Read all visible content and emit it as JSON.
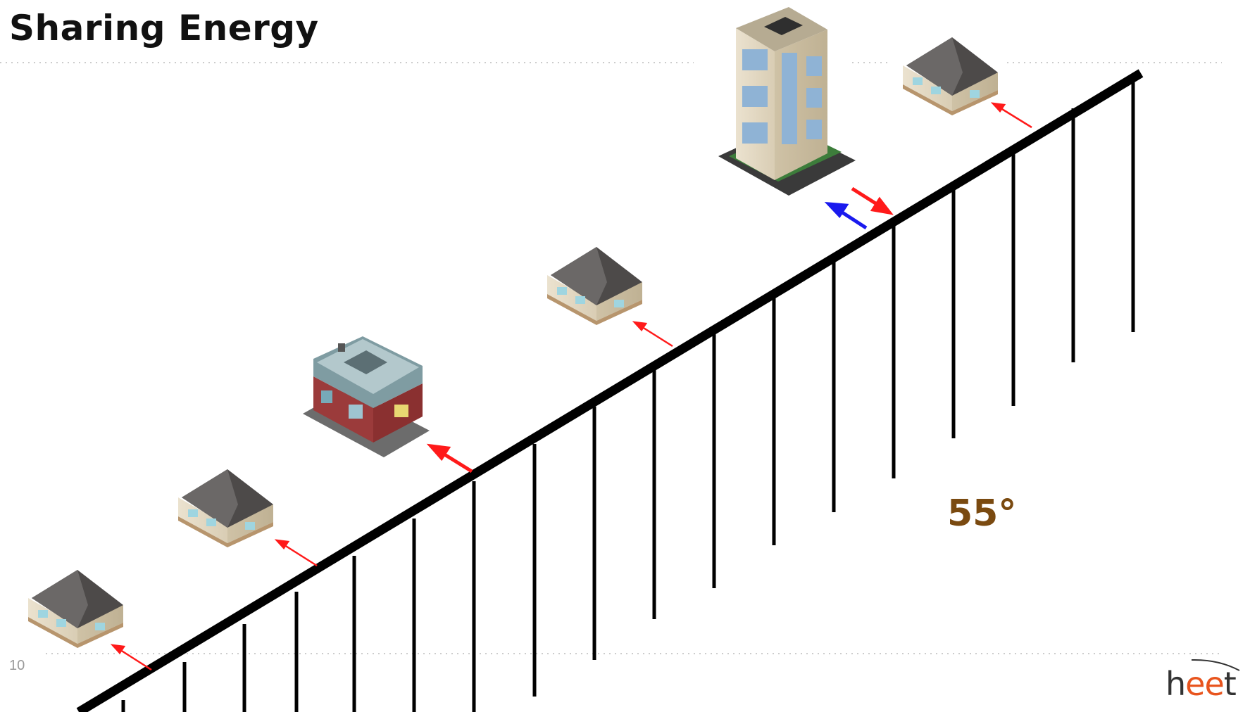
{
  "title": "Sharing Energy",
  "page_number": "10",
  "angle_label": "55°",
  "logo": {
    "part1": "h",
    "part2": "ee",
    "part3": "t",
    "colors": {
      "dark": "#333333",
      "accent": "#e8541d"
    }
  },
  "colors": {
    "pipe": "#000000",
    "flow_out": "#ff1a1a",
    "flow_in": "#1a1aee",
    "angle_label": "#7a4a10",
    "rule": "#cccccc"
  },
  "buildings": [
    {
      "type": "house",
      "label": "house-1"
    },
    {
      "type": "house",
      "label": "house-2"
    },
    {
      "type": "shop",
      "label": "shop"
    },
    {
      "type": "house",
      "label": "house-3"
    },
    {
      "type": "office-tower",
      "label": "office-tower"
    },
    {
      "type": "house",
      "label": "house-4"
    }
  ]
}
